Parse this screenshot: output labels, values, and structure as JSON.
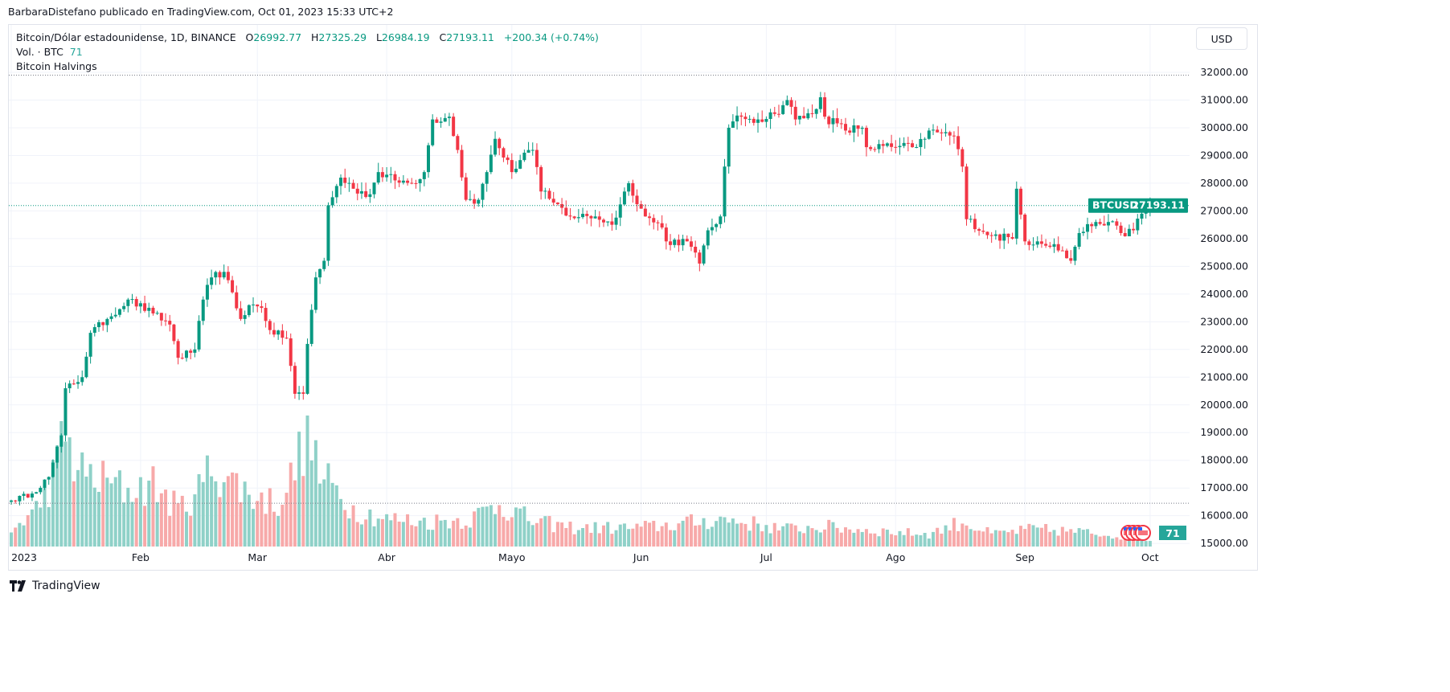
{
  "published": "BarbaraDistefano publicado en TradingView.com, Oct 01, 2023 15:33 UTC+2",
  "legend": {
    "symbol": "Bitcoin/Dólar estadounidense, 1D, BINANCE",
    "o_label": "O",
    "o": "26992.77",
    "h_label": "H",
    "h": "27325.29",
    "l_label": "L",
    "l": "26984.19",
    "c_label": "C",
    "c": "27193.11",
    "change": "+200.34 (+0.74%)",
    "vol_label": "Vol. · BTC",
    "vol": "71",
    "halvings": "Bitcoin Halvings"
  },
  "currency_button": "USD",
  "price_tag": {
    "symbol": "BTCUSD",
    "price": "27193.11"
  },
  "volume_tag": "71",
  "footer_logo": "TradingView",
  "colors": {
    "up": "#089981",
    "down": "#f23645",
    "up_vol": "#8fd1c8",
    "down_vol": "#f7a9a9",
    "grid": "#f0f3fa"
  },
  "chart_data": {
    "type": "candlestick",
    "title": "Bitcoin/Dólar estadounidense, 1D, BINANCE",
    "ylim": [
      15000,
      32000
    ],
    "y_ticks": [
      "32000.00",
      "31000.00",
      "30000.00",
      "29000.00",
      "28000.00",
      "27000.00",
      "26000.00",
      "25000.00",
      "24000.00",
      "23000.00",
      "22000.00",
      "21000.00",
      "20000.00",
      "19000.00",
      "18000.00",
      "17000.00",
      "16000.00",
      "15000.00"
    ],
    "x_ticks": [
      {
        "label": "2023",
        "day": 0
      },
      {
        "label": "Feb",
        "day": 31
      },
      {
        "label": "Mar",
        "day": 59
      },
      {
        "label": "Abr",
        "day": 90
      },
      {
        "label": "Mayo",
        "day": 120
      },
      {
        "label": "Jun",
        "day": 151
      },
      {
        "label": "Jul",
        "day": 181
      },
      {
        "label": "Ago",
        "day": 212
      },
      {
        "label": "Sep",
        "day": 243
      },
      {
        "label": "Oct",
        "day": 273
      }
    ],
    "days": 274,
    "close_keyframes": [
      [
        0,
        16550
      ],
      [
        5,
        16800
      ],
      [
        9,
        17400
      ],
      [
        12,
        18900
      ],
      [
        13,
        20600
      ],
      [
        17,
        21000
      ],
      [
        19,
        22600
      ],
      [
        23,
        23100
      ],
      [
        28,
        23800
      ],
      [
        34,
        23300
      ],
      [
        38,
        22900
      ],
      [
        40,
        21700
      ],
      [
        44,
        22000
      ],
      [
        46,
        23800
      ],
      [
        48,
        24600
      ],
      [
        51,
        24800
      ],
      [
        55,
        23100
      ],
      [
        57,
        23600
      ],
      [
        60,
        23500
      ],
      [
        62,
        22700
      ],
      [
        66,
        22400
      ],
      [
        68,
        20400
      ],
      [
        70,
        20400
      ],
      [
        71,
        22200
      ],
      [
        73,
        24600
      ],
      [
        75,
        25200
      ],
      [
        76,
        27200
      ],
      [
        79,
        28200
      ],
      [
        82,
        27800
      ],
      [
        86,
        27600
      ],
      [
        88,
        28400
      ],
      [
        92,
        28100
      ],
      [
        96,
        28000
      ],
      [
        99,
        28400
      ],
      [
        101,
        30300
      ],
      [
        105,
        30400
      ],
      [
        107,
        29200
      ],
      [
        109,
        27400
      ],
      [
        112,
        27400
      ],
      [
        114,
        28400
      ],
      [
        116,
        29600
      ],
      [
        120,
        28400
      ],
      [
        123,
        29100
      ],
      [
        125,
        29200
      ],
      [
        127,
        27700
      ],
      [
        130,
        27300
      ],
      [
        134,
        26800
      ],
      [
        140,
        26800
      ],
      [
        144,
        26500
      ],
      [
        148,
        28000
      ],
      [
        152,
        26800
      ],
      [
        156,
        26400
      ],
      [
        157,
        25900
      ],
      [
        162,
        25900
      ],
      [
        165,
        25100
      ],
      [
        167,
        26300
      ],
      [
        170,
        26800
      ],
      [
        171,
        28600
      ],
      [
        172,
        30000
      ],
      [
        175,
        30400
      ],
      [
        179,
        30300
      ],
      [
        183,
        30500
      ],
      [
        186,
        31000
      ],
      [
        188,
        30300
      ],
      [
        192,
        30500
      ],
      [
        194,
        31100
      ],
      [
        195,
        30400
      ],
      [
        200,
        29900
      ],
      [
        204,
        30000
      ],
      [
        205,
        29300
      ],
      [
        212,
        29300
      ],
      [
        216,
        29300
      ],
      [
        219,
        29600
      ],
      [
        220,
        29900
      ],
      [
        223,
        29800
      ],
      [
        226,
        29700
      ],
      [
        228,
        28600
      ],
      [
        229,
        26700
      ],
      [
        235,
        26100
      ],
      [
        240,
        26000
      ],
      [
        241,
        27800
      ],
      [
        243,
        25900
      ],
      [
        246,
        25900
      ],
      [
        250,
        25800
      ],
      [
        254,
        25200
      ],
      [
        256,
        26200
      ],
      [
        260,
        26600
      ],
      [
        263,
        26600
      ],
      [
        266,
        26200
      ],
      [
        269,
        26300
      ],
      [
        271,
        26900
      ],
      [
        273,
        27193
      ]
    ],
    "volume_keyframes": [
      [
        0,
        12
      ],
      [
        6,
        30
      ],
      [
        10,
        55
      ],
      [
        13,
        90
      ],
      [
        16,
        60
      ],
      [
        20,
        55
      ],
      [
        28,
        45
      ],
      [
        34,
        50
      ],
      [
        40,
        30
      ],
      [
        45,
        45
      ],
      [
        48,
        65
      ],
      [
        52,
        55
      ],
      [
        58,
        40
      ],
      [
        64,
        35
      ],
      [
        68,
        60
      ],
      [
        71,
        100
      ],
      [
        74,
        55
      ],
      [
        78,
        45
      ],
      [
        82,
        30
      ],
      [
        90,
        22
      ],
      [
        100,
        20
      ],
      [
        110,
        22
      ],
      [
        117,
        35
      ],
      [
        125,
        20
      ],
      [
        135,
        15
      ],
      [
        150,
        15
      ],
      [
        160,
        18
      ],
      [
        170,
        22
      ],
      [
        175,
        20
      ],
      [
        185,
        14
      ],
      [
        195,
        16
      ],
      [
        210,
        12
      ],
      [
        220,
        10
      ],
      [
        228,
        20
      ],
      [
        235,
        10
      ],
      [
        245,
        14
      ],
      [
        255,
        12
      ],
      [
        265,
        9
      ],
      [
        273,
        5
      ]
    ],
    "current_price": 27193.11,
    "horizontal_lines": [
      31900,
      16450
    ]
  }
}
